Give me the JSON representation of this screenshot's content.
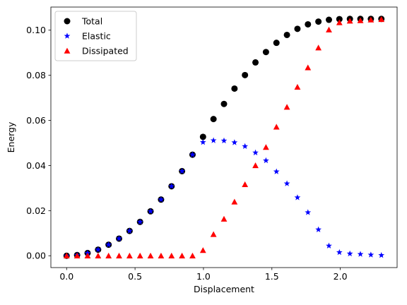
{
  "chart_data": {
    "type": "scatter",
    "xlabel": "Displacement",
    "ylabel": "Energy",
    "xlim": [
      -0.115,
      2.415
    ],
    "ylim": [
      -0.00525,
      0.11025
    ],
    "xticks": [
      0.0,
      0.5,
      1.0,
      1.5,
      2.0
    ],
    "xtick_labels": [
      "0.0",
      "0.5",
      "1.0",
      "1.5",
      "2.0"
    ],
    "yticks": [
      0.0,
      0.02,
      0.04,
      0.06,
      0.08,
      0.1
    ],
    "ytick_labels": [
      "0.00",
      "0.02",
      "0.04",
      "0.06",
      "0.08",
      "0.10"
    ],
    "grid": false,
    "legend_position": "top-left",
    "x": [
      0.0,
      0.0767,
      0.1533,
      0.23,
      0.3067,
      0.3833,
      0.46,
      0.5367,
      0.6133,
      0.69,
      0.7667,
      0.8433,
      0.92,
      0.9967,
      1.0733,
      1.15,
      1.2267,
      1.3033,
      1.38,
      1.4567,
      1.5333,
      1.61,
      1.6867,
      1.7633,
      1.84,
      1.9167,
      1.9933,
      2.07,
      2.1467,
      2.2233,
      2.3
    ],
    "series": [
      {
        "name": "Total",
        "marker": "circle",
        "color": "#000000",
        "values": [
          0.0,
          0.0003,
          0.0012,
          0.0027,
          0.0049,
          0.0076,
          0.011,
          0.015,
          0.0197,
          0.0249,
          0.0308,
          0.0375,
          0.0448,
          0.0527,
          0.0606,
          0.0673,
          0.0741,
          0.0801,
          0.0857,
          0.0903,
          0.0944,
          0.0979,
          0.1006,
          0.1026,
          0.1038,
          0.1046,
          0.1049,
          0.105,
          0.105,
          0.105,
          0.105
        ]
      },
      {
        "name": "Elastic",
        "marker": "star",
        "color": "#0000ff",
        "values": [
          0.0,
          0.0003,
          0.0012,
          0.0027,
          0.0049,
          0.0076,
          0.011,
          0.015,
          0.0197,
          0.0249,
          0.0308,
          0.0375,
          0.0448,
          0.0503,
          0.0511,
          0.051,
          0.0502,
          0.0485,
          0.0457,
          0.0422,
          0.0373,
          0.032,
          0.0258,
          0.0192,
          0.0116,
          0.0044,
          0.0015,
          0.0009,
          0.0007,
          0.0004,
          0.0002
        ]
      },
      {
        "name": "Dissipated",
        "marker": "triangle",
        "color": "#ff0000",
        "values": [
          0.0,
          0.0,
          0.0,
          0.0,
          0.0,
          0.0,
          0.0,
          0.0,
          0.0,
          0.0,
          0.0,
          0.0,
          0.0,
          0.0024,
          0.0095,
          0.0163,
          0.0239,
          0.0316,
          0.04,
          0.0481,
          0.0571,
          0.0659,
          0.0748,
          0.0834,
          0.0922,
          0.1002,
          0.1034,
          0.1041,
          0.1043,
          0.1046,
          0.1048
        ]
      }
    ]
  }
}
